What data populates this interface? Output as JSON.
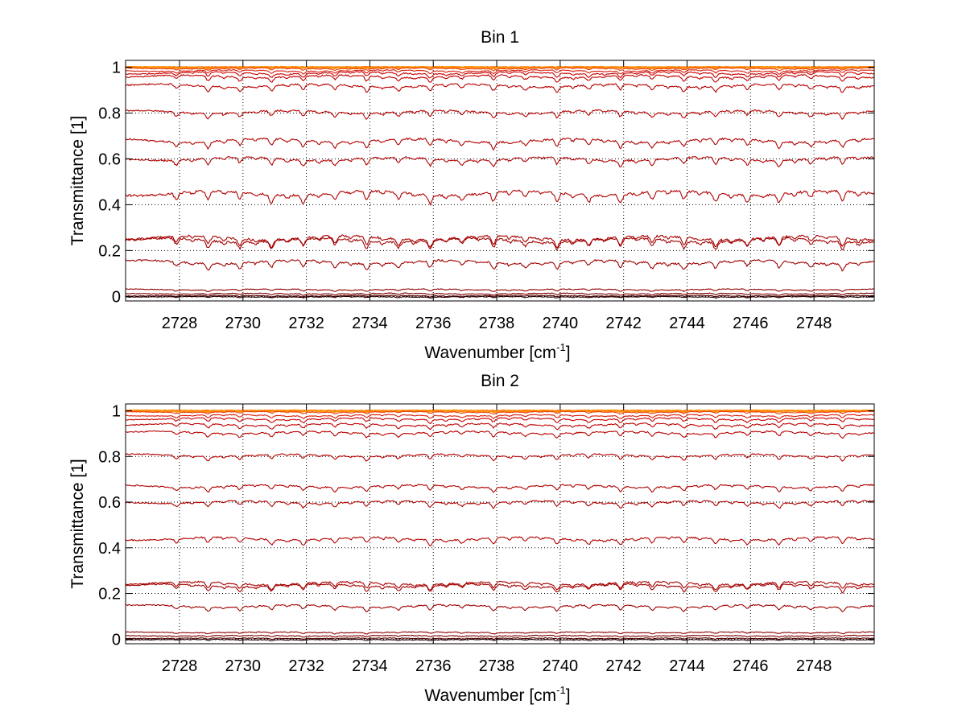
{
  "chart_data": [
    {
      "type": "line",
      "title": "Bin 1",
      "xlabel": "Wavenumber [cm",
      "xlabel_sup": "-1",
      "xlabel_end": "]",
      "ylabel": "Transmittance [1]",
      "xlim": [
        2726.3,
        2749.9
      ],
      "ylim": [
        -0.02,
        1.03
      ],
      "xticks": [
        2728,
        2730,
        2732,
        2734,
        2736,
        2738,
        2740,
        2742,
        2744,
        2746,
        2748
      ],
      "yticks": [
        0,
        0.2,
        0.4,
        0.6,
        0.8,
        1
      ],
      "ytick_labels": [
        "0",
        "0.2",
        "0.4",
        "0.6",
        "0.8",
        "1"
      ],
      "grid": true,
      "line_peak_x": [
        2727.9,
        2728.9,
        2729.9,
        2730.9,
        2731.9,
        2732.9,
        2733.9,
        2734.9,
        2735.9,
        2736.9,
        2737.9,
        2738.9,
        2739.9,
        2740.9,
        2741.9,
        2742.9,
        2743.9,
        2744.9,
        2745.9,
        2746.9,
        2747.9,
        2748.9
      ],
      "series": [
        {
          "baseline": 1.0,
          "depth": 0.0,
          "color": "#ff6a00"
        },
        {
          "baseline": 1.0,
          "depth": 0.004,
          "color": "#ff8c00"
        },
        {
          "baseline": 0.995,
          "depth": 0.008,
          "color": "#e8400a"
        },
        {
          "baseline": 0.985,
          "depth": 0.012,
          "color": "#d81c0c"
        },
        {
          "baseline": 0.975,
          "depth": 0.018,
          "color": "#c80000"
        },
        {
          "baseline": 0.96,
          "depth": 0.022,
          "color": "#c00000"
        },
        {
          "baseline": 0.92,
          "depth": 0.025,
          "color": "#b80000"
        },
        {
          "baseline": 0.805,
          "depth": 0.025,
          "color": "#b80000"
        },
        {
          "baseline": 0.68,
          "depth": 0.03,
          "color": "#b00000"
        },
        {
          "baseline": 0.6,
          "depth": 0.03,
          "color": "#b00000"
        },
        {
          "baseline": 0.45,
          "depth": 0.04,
          "color": "#b00000"
        },
        {
          "baseline": 0.255,
          "depth": 0.035,
          "color": "#a80000"
        },
        {
          "baseline": 0.245,
          "depth": 0.035,
          "color": "#a00000"
        },
        {
          "baseline": 0.15,
          "depth": 0.03,
          "color": "#a00000"
        },
        {
          "baseline": 0.03,
          "depth": 0.008,
          "color": "#900000"
        },
        {
          "baseline": 0.012,
          "depth": 0.006,
          "color": "#800000"
        },
        {
          "baseline": 0.003,
          "depth": 0.005,
          "color": "#500000"
        },
        {
          "baseline": -0.002,
          "depth": 0.004,
          "color": "#200000"
        }
      ]
    },
    {
      "type": "line",
      "title": "Bin 2",
      "xlabel": "Wavenumber [cm",
      "xlabel_sup": "-1",
      "xlabel_end": "]",
      "ylabel": "Transmittance [1]",
      "xlim": [
        2726.3,
        2749.9
      ],
      "ylim": [
        -0.02,
        1.03
      ],
      "xticks": [
        2728,
        2730,
        2732,
        2734,
        2736,
        2738,
        2740,
        2742,
        2744,
        2746,
        2748
      ],
      "yticks": [
        0,
        0.2,
        0.4,
        0.6,
        0.8,
        1
      ],
      "ytick_labels": [
        "0",
        "0.2",
        "0.4",
        "0.6",
        "0.8",
        "1"
      ],
      "grid": true,
      "line_peak_x": [
        2727.9,
        2728.9,
        2729.9,
        2730.9,
        2731.9,
        2732.9,
        2733.9,
        2734.9,
        2735.9,
        2736.9,
        2737.9,
        2738.9,
        2739.9,
        2740.9,
        2741.9,
        2742.9,
        2743.9,
        2744.9,
        2745.9,
        2746.9,
        2747.9,
        2748.9
      ],
      "series": [
        {
          "baseline": 1.0,
          "depth": 0.0,
          "color": "#ff6a00"
        },
        {
          "baseline": 1.0,
          "depth": 0.004,
          "color": "#ff8c00"
        },
        {
          "baseline": 0.995,
          "depth": 0.008,
          "color": "#e8400a"
        },
        {
          "baseline": 0.98,
          "depth": 0.012,
          "color": "#d81c0c"
        },
        {
          "baseline": 0.965,
          "depth": 0.016,
          "color": "#c80000"
        },
        {
          "baseline": 0.94,
          "depth": 0.018,
          "color": "#c00000"
        },
        {
          "baseline": 0.905,
          "depth": 0.02,
          "color": "#b80000"
        },
        {
          "baseline": 0.805,
          "depth": 0.02,
          "color": "#b80000"
        },
        {
          "baseline": 0.67,
          "depth": 0.022,
          "color": "#b00000"
        },
        {
          "baseline": 0.6,
          "depth": 0.022,
          "color": "#b00000"
        },
        {
          "baseline": 0.44,
          "depth": 0.025,
          "color": "#b00000"
        },
        {
          "baseline": 0.245,
          "depth": 0.025,
          "color": "#a80000"
        },
        {
          "baseline": 0.235,
          "depth": 0.025,
          "color": "#a00000"
        },
        {
          "baseline": 0.145,
          "depth": 0.02,
          "color": "#a00000"
        },
        {
          "baseline": 0.03,
          "depth": 0.006,
          "color": "#900000"
        },
        {
          "baseline": 0.015,
          "depth": 0.005,
          "color": "#800000"
        },
        {
          "baseline": 0.004,
          "depth": 0.004,
          "color": "#500000"
        },
        {
          "baseline": -0.002,
          "depth": 0.004,
          "color": "#200000"
        }
      ]
    }
  ]
}
